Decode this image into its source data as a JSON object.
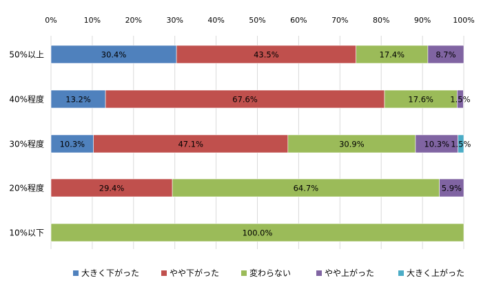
{
  "chart_data": {
    "type": "bar",
    "orientation": "horizontal",
    "stacked": "percent",
    "categories": [
      "50%以上",
      "40%程度",
      "30%程度",
      "20%程度",
      "10%以下"
    ],
    "series": [
      {
        "name": "大きく下がった",
        "color": "#4f81bd",
        "values": [
          30.4,
          13.2,
          10.3,
          0,
          0
        ]
      },
      {
        "name": "やや下がった",
        "color": "#c0504d",
        "values": [
          43.5,
          67.6,
          47.1,
          29.4,
          0
        ]
      },
      {
        "name": "変わらない",
        "color": "#9bbb59",
        "values": [
          17.4,
          17.6,
          30.9,
          64.7,
          100.0
        ]
      },
      {
        "name": "やや上がった",
        "color": "#8064a2",
        "values": [
          8.7,
          1.5,
          10.3,
          5.9,
          0
        ]
      },
      {
        "name": "大きく上がった",
        "color": "#4bacc6",
        "values": [
          0,
          0,
          1.5,
          0,
          0
        ]
      }
    ],
    "data_labels": [
      [
        "30.4%",
        "43.5%",
        "17.4%",
        "8.7%",
        ""
      ],
      [
        "13.2%",
        "67.6%",
        "17.6%",
        "1.5%",
        ""
      ],
      [
        "10.3%",
        "47.1%",
        "30.9%",
        "10.3%",
        "1.5%"
      ],
      [
        "",
        "29.4%",
        "64.7%",
        "5.9%",
        ""
      ],
      [
        "",
        "",
        "100.0%",
        "",
        ""
      ]
    ],
    "x_ticks": [
      "0%",
      "10%",
      "20%",
      "30%",
      "40%",
      "50%",
      "60%",
      "70%",
      "80%",
      "90%",
      "100%"
    ],
    "xlim": [
      0,
      100
    ],
    "grid": true,
    "legend_position": "bottom"
  }
}
